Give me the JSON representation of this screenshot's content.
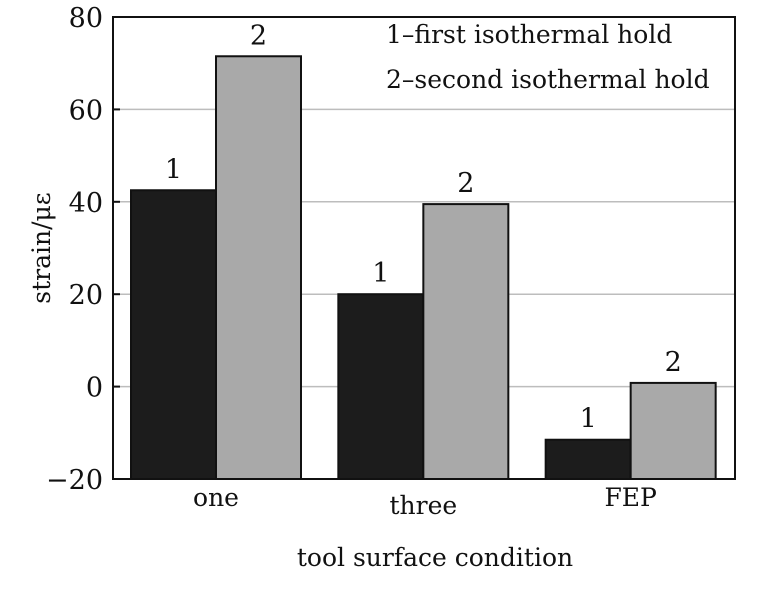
{
  "chart_data": {
    "type": "bar",
    "title": "",
    "xlabel": "tool surface condition",
    "ylabel": "strain/με",
    "categories": [
      "one",
      "three",
      "FEP"
    ],
    "series": [
      {
        "name": "1–first isothermal hold",
        "label": "1",
        "color": "#1c1c1c",
        "values": [
          42.5,
          20,
          -11.5
        ]
      },
      {
        "name": "2–second isothermal hold",
        "label": "2",
        "color": "#a9a9a9",
        "values": [
          71.5,
          39.5,
          0.8
        ]
      }
    ],
    "ylim": [
      -20,
      80
    ],
    "yticks": [
      -20,
      0,
      20,
      40,
      60,
      80
    ],
    "ytick_labels": [
      "−20",
      "0",
      "20",
      "40",
      "60",
      "80"
    ],
    "grid": true,
    "legend_position": "top-right"
  }
}
